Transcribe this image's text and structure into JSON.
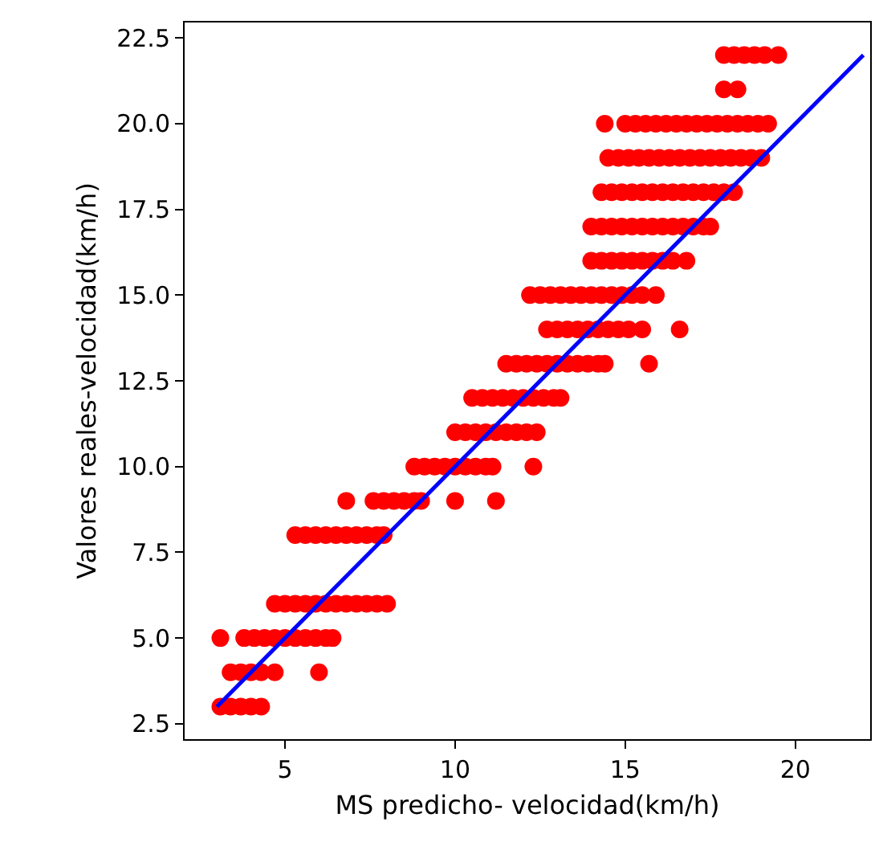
{
  "chart_data": {
    "type": "scatter",
    "xlabel": "MS predicho- velocidad(km/h)",
    "ylabel": "Valores reales-velocidad(km/h)",
    "xlim": [
      2.05,
      22.2
    ],
    "ylim": [
      2.05,
      22.95
    ],
    "xticks": [
      5,
      10,
      15,
      20
    ],
    "yticks": [
      2.5,
      {
        "value": 5,
        "label": "5.0"
      },
      7.5,
      {
        "value": 10,
        "label": "10.0"
      },
      12.5,
      {
        "value": 15,
        "label": "15.0"
      },
      17.5,
      {
        "value": 20,
        "label": "20.0"
      },
      22.5
    ],
    "marker": "circle",
    "series": [
      {
        "color": "#ff0000",
        "x": [
          3.1,
          3.4,
          3.7,
          4.0,
          4.3,
          3.4,
          3.7,
          4.0,
          4.3,
          4.7,
          6.0,
          3.1,
          3.8,
          4.1,
          4.4,
          4.7,
          5.0,
          5.3,
          5.6,
          5.9,
          6.2,
          6.4,
          4.7,
          5.0,
          5.3,
          5.6,
          5.9,
          6.2,
          6.5,
          6.8,
          7.1,
          7.4,
          7.7,
          8.0,
          5.3,
          5.6,
          5.9,
          6.2,
          6.5,
          6.8,
          7.1,
          7.4,
          7.7,
          7.9,
          6.8,
          7.6,
          7.9,
          8.2,
          8.5,
          8.8,
          9.0,
          10.0,
          11.2,
          8.8,
          9.1,
          9.4,
          9.7,
          10.0,
          10.3,
          10.6,
          10.9,
          11.1,
          12.3,
          10.0,
          10.3,
          10.6,
          10.9,
          11.2,
          11.5,
          11.8,
          12.1,
          12.4,
          10.5,
          10.8,
          11.1,
          11.4,
          11.7,
          12.0,
          12.3,
          12.6,
          12.9,
          13.1,
          11.5,
          11.8,
          12.1,
          12.4,
          12.7,
          13.0,
          13.3,
          13.6,
          13.9,
          14.2,
          14.4,
          15.7,
          12.7,
          13.0,
          13.3,
          13.6,
          13.9,
          14.2,
          14.5,
          14.8,
          15.1,
          15.5,
          16.6,
          12.2,
          12.5,
          12.8,
          13.1,
          13.4,
          13.7,
          14.0,
          14.3,
          14.6,
          14.9,
          15.2,
          15.5,
          15.9,
          14.0,
          14.3,
          14.6,
          14.9,
          15.2,
          15.5,
          15.8,
          16.1,
          16.4,
          16.8,
          14.0,
          14.3,
          14.6,
          14.9,
          15.2,
          15.5,
          15.8,
          16.1,
          16.4,
          16.7,
          17.0,
          17.3,
          17.5,
          14.3,
          14.6,
          14.9,
          15.2,
          15.5,
          15.8,
          16.1,
          16.4,
          16.7,
          17.0,
          17.3,
          17.6,
          17.9,
          18.2,
          14.5,
          14.8,
          15.1,
          15.4,
          15.7,
          16.0,
          16.3,
          16.6,
          16.9,
          17.2,
          17.5,
          17.8,
          18.1,
          18.4,
          18.7,
          19.0,
          14.4,
          15.0,
          15.3,
          15.6,
          15.9,
          16.2,
          16.5,
          16.8,
          17.1,
          17.4,
          17.7,
          18.0,
          18.3,
          18.6,
          18.9,
          19.2,
          17.9,
          18.3,
          17.9,
          18.2,
          18.5,
          18.8,
          19.1,
          19.5
        ],
        "values": [
          3,
          3,
          3,
          3,
          3,
          4,
          4,
          4,
          4,
          4,
          4,
          5,
          5,
          5,
          5,
          5,
          5,
          5,
          5,
          5,
          5,
          5,
          6,
          6,
          6,
          6,
          6,
          6,
          6,
          6,
          6,
          6,
          6,
          6,
          8,
          8,
          8,
          8,
          8,
          8,
          8,
          8,
          8,
          8,
          9,
          9,
          9,
          9,
          9,
          9,
          9,
          9,
          9,
          10,
          10,
          10,
          10,
          10,
          10,
          10,
          10,
          10,
          10,
          11,
          11,
          11,
          11,
          11,
          11,
          11,
          11,
          11,
          12,
          12,
          12,
          12,
          12,
          12,
          12,
          12,
          12,
          12,
          13,
          13,
          13,
          13,
          13,
          13,
          13,
          13,
          13,
          13,
          13,
          13,
          14,
          14,
          14,
          14,
          14,
          14,
          14,
          14,
          14,
          14,
          14,
          15,
          15,
          15,
          15,
          15,
          15,
          15,
          15,
          15,
          15,
          15,
          15,
          15,
          16,
          16,
          16,
          16,
          16,
          16,
          16,
          16,
          16,
          16,
          17,
          17,
          17,
          17,
          17,
          17,
          17,
          17,
          17,
          17,
          17,
          17,
          17,
          18,
          18,
          18,
          18,
          18,
          18,
          18,
          18,
          18,
          18,
          18,
          18,
          18,
          18,
          19,
          19,
          19,
          19,
          19,
          19,
          19,
          19,
          19,
          19,
          19,
          19,
          19,
          19,
          19,
          19,
          20,
          20,
          20,
          20,
          20,
          20,
          20,
          20,
          20,
          20,
          20,
          20,
          20,
          20,
          20,
          20,
          21,
          21,
          22,
          22,
          22,
          22,
          22,
          22
        ]
      },
      {
        "type": "line",
        "color": "#0000ff",
        "x": [
          3,
          22
        ],
        "values": [
          3,
          22
        ],
        "marker": "none",
        "line_style": "solid"
      }
    ]
  }
}
